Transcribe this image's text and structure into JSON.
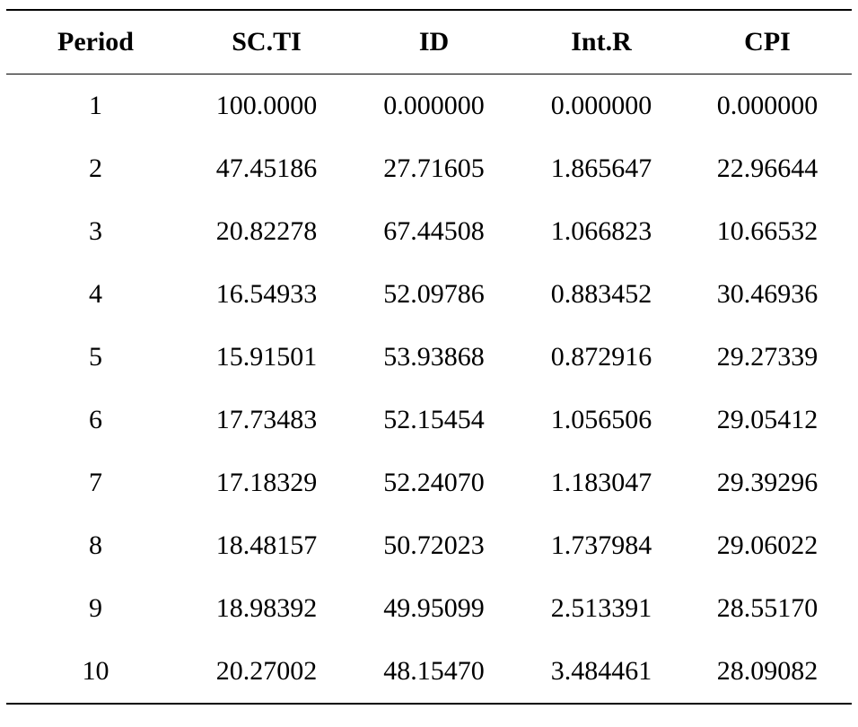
{
  "table": {
    "headers": [
      "Period",
      "SC.TI",
      "ID",
      "Int.R",
      "CPI"
    ],
    "rows": [
      [
        "1",
        "100.0000",
        "0.000000",
        "0.000000",
        "0.000000"
      ],
      [
        "2",
        "47.45186",
        "27.71605",
        "1.865647",
        "22.96644"
      ],
      [
        "3",
        "20.82278",
        "67.44508",
        "1.066823",
        "10.66532"
      ],
      [
        "4",
        "16.54933",
        "52.09786",
        "0.883452",
        "30.46936"
      ],
      [
        "5",
        "15.91501",
        "53.93868",
        "0.872916",
        "29.27339"
      ],
      [
        "6",
        "17.73483",
        "52.15454",
        "1.056506",
        "29.05412"
      ],
      [
        "7",
        "17.18329",
        "52.24070",
        "1.183047",
        "29.39296"
      ],
      [
        "8",
        "18.48157",
        "50.72023",
        "1.737984",
        "29.06022"
      ],
      [
        "9",
        "18.98392",
        "49.95099",
        "2.513391",
        "28.55170"
      ],
      [
        "10",
        "20.27002",
        "48.15470",
        "3.484461",
        "28.09082"
      ]
    ]
  }
}
